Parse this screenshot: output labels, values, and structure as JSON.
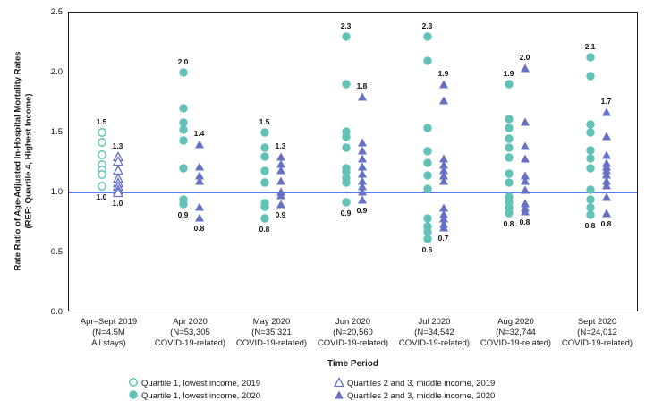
{
  "chart_data": {
    "type": "scatter",
    "ylabel_line1": "Rate Ratio of Age-Adjusted In-Hospital Mortality Rates",
    "ylabel_line2": "(REF: Quartile 4, Highest Income)",
    "xlabel": "Time Period",
    "ylim": [
      0.0,
      2.5
    ],
    "yticks": [
      "0.0",
      "0.5",
      "1.0",
      "1.5",
      "2.0",
      "2.5"
    ],
    "reference_line": 1.0,
    "grid": false,
    "colors": {
      "quartile1_teal": "#62C2B7",
      "quartiles23_purple": "#6671C5",
      "reference_line_blue": "#5F7FD8",
      "frame_black": "#1a1a1a"
    },
    "legend": [
      {
        "marker": "circle-open",
        "label": "Quartile 1, lowest income, 2019"
      },
      {
        "marker": "circle-filled",
        "label": "Quartile 1, lowest income, 2020"
      },
      {
        "marker": "triangle-open",
        "label": "Quartiles 2 and 3, middle income, 2019"
      },
      {
        "marker": "triangle-filled",
        "label": "Quartiles 2 and 3, middle income, 2020"
      }
    ],
    "groups": [
      {
        "label_lines": [
          "Apr–Sept 2019",
          "(N=4.5M",
          "All stays)"
        ],
        "marker_style": "open",
        "series_a": {
          "name": "Quartile 1, lowest income, 2019",
          "values": [
            1.5,
            1.42,
            1.31,
            1.23,
            1.19,
            1.15,
            1.05
          ],
          "max_label": "1.5",
          "min_label": "1.0"
        },
        "series_b": {
          "name": "Quartiles 2 and 3, middle income, 2019",
          "values": [
            1.3,
            1.26,
            1.19,
            1.12,
            1.08,
            1.05,
            1.02,
            1.0
          ],
          "max_label": "1.3",
          "min_label": "1.0"
        }
      },
      {
        "label_lines": [
          "Apr 2020",
          "(N=53,305",
          "COVID-19-related)"
        ],
        "marker_style": "filled",
        "series_a": {
          "name": "Quartile 1, lowest income, 2020",
          "values": [
            2.0,
            1.7,
            1.58,
            1.52,
            1.43,
            1.2,
            0.94,
            0.9
          ],
          "max_label": "2.0",
          "min_label": "0.9"
        },
        "series_b": {
          "name": "Quartiles 2 and 3, middle income, 2020",
          "values": [
            1.4,
            1.22,
            1.14,
            1.1,
            0.88,
            0.79
          ],
          "max_label": "1.4",
          "min_label": "0.8"
        }
      },
      {
        "label_lines": [
          "May 2020",
          "(N=35,321",
          "COVID-19-related)"
        ],
        "marker_style": "filled",
        "series_a": {
          "name": "Quartile 1, lowest income, 2020",
          "values": [
            1.5,
            1.37,
            1.3,
            1.18,
            1.08,
            0.91,
            0.88,
            0.78
          ],
          "max_label": "1.5",
          "min_label": "0.8"
        },
        "series_b": {
          "name": "Quartiles 2 and 3, middle income, 2020",
          "values": [
            1.3,
            1.24,
            1.19,
            1.1,
            1.01,
            0.98,
            0.9
          ],
          "max_label": "1.3",
          "min_label": "0.9"
        }
      },
      {
        "label_lines": [
          "Jun 2020",
          "(N=20,560",
          "COVID-19-related)"
        ],
        "marker_style": "filled",
        "series_a": {
          "name": "Quartile 1, lowest income, 2020",
          "values": [
            2.3,
            1.9,
            1.51,
            1.46,
            1.37,
            1.2,
            1.17,
            1.12,
            1.08,
            0.92
          ],
          "max_label": "2.3",
          "min_label": "0.9"
        },
        "series_b": {
          "name": "Quartiles 2 and 3, middle income, 2020",
          "values": [
            1.8,
            1.42,
            1.35,
            1.28,
            1.22,
            1.16,
            1.1,
            1.05,
            1.01,
            0.94
          ],
          "max_label": "1.8",
          "min_label": "0.9"
        }
      },
      {
        "label_lines": [
          "Jul 2020",
          "(N=34,542",
          "COVID-19-related)"
        ],
        "marker_style": "filled",
        "series_a": {
          "name": "Quartile 1, lowest income, 2020",
          "values": [
            2.3,
            2.1,
            1.54,
            1.34,
            1.25,
            1.14,
            1.03,
            0.78,
            0.72,
            0.67,
            0.61
          ],
          "max_label": "2.3",
          "min_label": "0.6"
        },
        "series_b": {
          "name": "Quartiles 2 and 3, middle income, 2020",
          "values": [
            1.9,
            1.77,
            1.28,
            1.23,
            1.19,
            1.14,
            1.1,
            0.87,
            0.82,
            0.78,
            0.74,
            0.71
          ],
          "max_label": "1.9",
          "min_label": "0.7"
        }
      },
      {
        "label_lines": [
          "Aug 2020",
          "(N=32,744",
          "COVID-19-related)"
        ],
        "marker_style": "filled",
        "series_a": {
          "name": "Quartile 1, lowest income, 2020",
          "values": [
            1.9,
            1.61,
            1.54,
            1.45,
            1.37,
            1.29,
            1.16,
            1.08,
            0.96,
            0.92,
            0.87,
            0.83
          ],
          "max_label": "1.9",
          "min_label": "0.8"
        },
        "series_b": {
          "name": "Quartiles 2 and 3, middle income, 2020",
          "values": [
            2.04,
            1.59,
            1.39,
            1.28,
            1.14,
            1.1,
            1.02,
            0.91,
            0.87,
            0.84
          ],
          "max_label": "2.0",
          "min_label": "0.8"
        }
      },
      {
        "label_lines": [
          "Sept 2020",
          "(N=24,012",
          "COVID-19-related)"
        ],
        "marker_style": "filled",
        "series_a": {
          "name": "Quartile 1, lowest income, 2020",
          "values": [
            2.13,
            1.97,
            1.57,
            1.5,
            1.35,
            1.28,
            1.2,
            1.02,
            0.94,
            0.87,
            0.81
          ],
          "max_label": "2.1",
          "min_label": "0.8"
        },
        "series_b": {
          "name": "Quartiles 2 and 3, middle income, 2020",
          "values": [
            1.67,
            1.47,
            1.31,
            1.25,
            1.22,
            1.19,
            1.15,
            1.1,
            1.06,
            0.96,
            0.83
          ],
          "max_label": "1.7",
          "min_label": "0.8"
        }
      }
    ]
  }
}
